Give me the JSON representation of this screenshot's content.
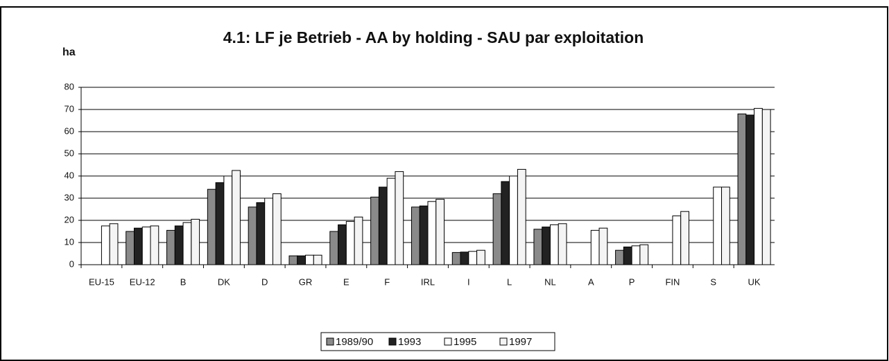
{
  "chart_data": {
    "type": "bar",
    "title": "4.1:   LF je Betrieb - AA by holding - SAU par exploitation",
    "y_label": "ha",
    "categories": [
      "EU-15",
      "EU-12",
      "B",
      "DK",
      "D",
      "GR",
      "E",
      "F",
      "IRL",
      "I",
      "L",
      "NL",
      "A",
      "P",
      "FIN",
      "S",
      "UK"
    ],
    "series": [
      {
        "name": "1989/90",
        "color": "#8a8a8a",
        "values": [
          null,
          15,
          15.5,
          34,
          26,
          4,
          15,
          30.5,
          26,
          5.5,
          32,
          16,
          null,
          6.5,
          null,
          null,
          68
        ]
      },
      {
        "name": "1993",
        "color": "#222222",
        "values": [
          null,
          16.5,
          17.5,
          37,
          28,
          4,
          18,
          35,
          26.5,
          5.7,
          37.5,
          17,
          null,
          8,
          null,
          null,
          67.5
        ]
      },
      {
        "name": "1995",
        "color": "#ffffff",
        "values": [
          17.5,
          17,
          19,
          40,
          30,
          4.3,
          19.5,
          39,
          28.5,
          6,
          40,
          18,
          15.5,
          8.5,
          22,
          35,
          70.5
        ]
      },
      {
        "name": "1997",
        "color": "#f4f4f4",
        "values": [
          18.5,
          17.5,
          20.5,
          42.5,
          32,
          4.3,
          21.5,
          42,
          29.5,
          6.5,
          43,
          18.5,
          16.5,
          9,
          24,
          35,
          70
        ]
      }
    ],
    "ylim": [
      0,
      80
    ],
    "yticks": [
      0,
      10,
      20,
      30,
      40,
      50,
      60,
      70,
      80
    ],
    "grid": true,
    "legend": "bottom"
  }
}
